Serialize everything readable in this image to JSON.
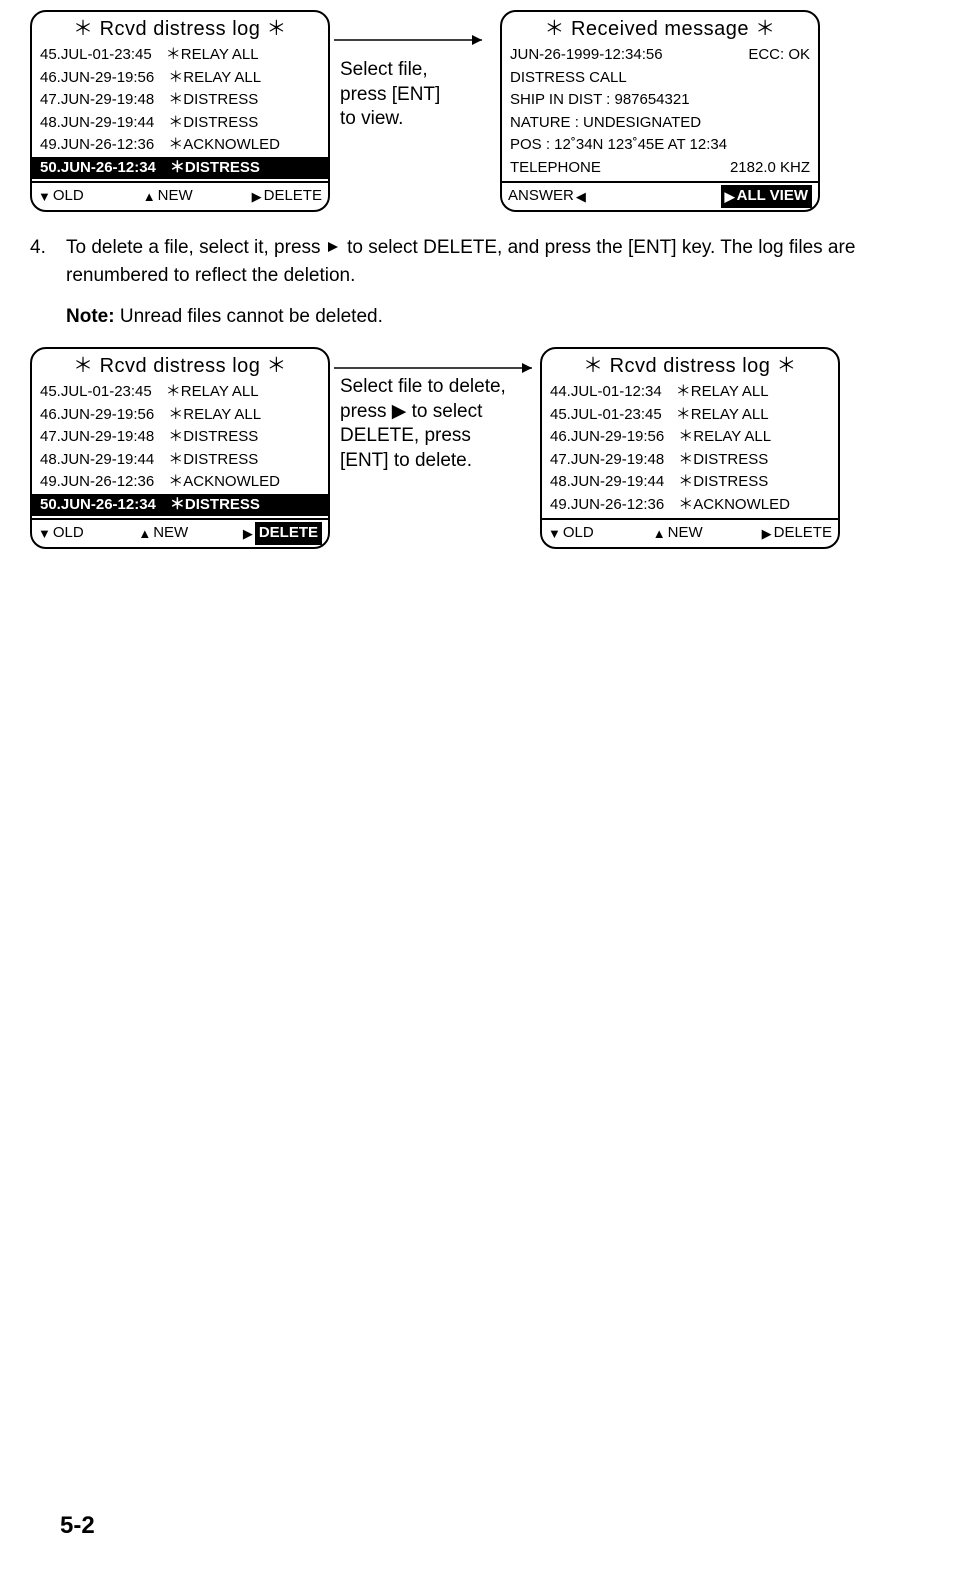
{
  "figure1": {
    "left_panel": {
      "title": "＊ Rcvd distress log ＊",
      "rows": [
        {
          "t": "45.JUL-01-23:45",
          "r": "＊RELAY  ALL",
          "sel": false
        },
        {
          "t": "46.JUN-29-19:56",
          "r": "＊RELAY  ALL",
          "sel": false
        },
        {
          "t": "47.JUN-29-19:48",
          "r": "＊DISTRESS",
          "sel": false
        },
        {
          "t": "48.JUN-29-19:44",
          "r": "＊DISTRESS",
          "sel": false
        },
        {
          "t": "49.JUN-26-12:36",
          "r": "＊ACKNOWLED",
          "sel": false
        },
        {
          "t": "50.JUN-26-12:34",
          "r": "＊DISTRESS",
          "sel": true
        }
      ],
      "footer": {
        "old": "OLD",
        "new": "NEW",
        "delete": "DELETE",
        "delete_inv": false
      }
    },
    "annotation": "Select file,\npress [ENT]\nto view.",
    "right_panel": {
      "title": "＊ Received message ＊",
      "lines": [
        {
          "l": "JUN-26-1999-12:34:56",
          "r": "ECC: OK"
        },
        {
          "l": "DISTRESS CALL",
          "r": ""
        },
        {
          "l": "SHIP IN DIST :  987654321",
          "r": ""
        },
        {
          "l": "NATURE : UNDESIGNATED",
          "r": ""
        },
        {
          "l": "POS : 12˚34N 123˚45E AT 12:34",
          "r": ""
        },
        {
          "l": "TELEPHONE",
          "r": "2182.0 KHZ"
        }
      ],
      "footer": {
        "answer": "ANSWER",
        "allview": "ALL VIEW"
      }
    }
  },
  "step4": {
    "num": "4.",
    "text_a": "To delete a file, select it, press ",
    "text_b": " to select DELETE, and press the [ENT] key. The log files are renumbered to reflect the deletion.",
    "note_label": "Note:",
    "note_text": " Unread files cannot be deleted."
  },
  "figure2": {
    "left_panel": {
      "title": "＊ Rcvd distress log ＊",
      "rows": [
        {
          "t": "45.JUL-01-23:45",
          "r": "＊RELAY  ALL",
          "sel": false
        },
        {
          "t": "46.JUN-29-19:56",
          "r": "＊RELAY  ALL",
          "sel": false
        },
        {
          "t": "47.JUN-29-19:48",
          "r": "＊DISTRESS",
          "sel": false
        },
        {
          "t": "48.JUN-29-19:44",
          "r": "＊DISTRESS",
          "sel": false
        },
        {
          "t": "49.JUN-26-12:36",
          "r": "＊ACKNOWLED",
          "sel": false
        },
        {
          "t": "50.JUN-26-12:34",
          "r": "＊DISTRESS",
          "sel": true
        }
      ],
      "footer": {
        "old": "OLD",
        "new": "NEW",
        "delete": "DELETE",
        "delete_inv": true
      }
    },
    "annotation": "Select file to delete,\npress ▶ to select\nDELETE, press\n[ENT] to delete.",
    "right_panel": {
      "title": "＊ Rcvd distress log ＊",
      "rows": [
        {
          "t": "44.JUL-01-12:34",
          "r": "＊RELAY  ALL",
          "sel": false
        },
        {
          "t": "45.JUL-01-23:45",
          "r": "＊RELAY  ALL",
          "sel": false
        },
        {
          "t": "46.JUN-29-19:56",
          "r": "＊RELAY  ALL",
          "sel": false
        },
        {
          "t": "47.JUN-29-19:48",
          "r": "＊DISTRESS",
          "sel": false
        },
        {
          "t": "48.JUN-29-19:44",
          "r": "＊DISTRESS",
          "sel": false
        },
        {
          "t": "49.JUN-26-12:36",
          "r": "＊ACKNOWLED",
          "sel": false
        }
      ],
      "footer": {
        "old": "OLD",
        "new": "NEW",
        "delete": "DELETE",
        "delete_inv": false
      }
    }
  },
  "page_num": "5-2",
  "glyphs": {
    "down": "▼",
    "up": "▲",
    "right": "▶",
    "left": "◀"
  }
}
